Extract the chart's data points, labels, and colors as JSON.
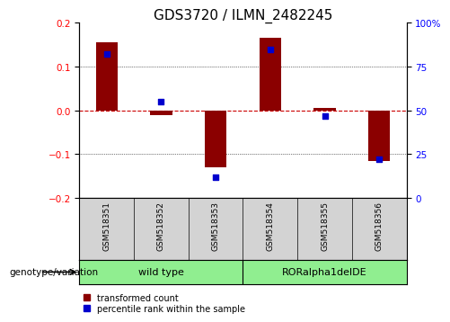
{
  "title": "GDS3720 / ILMN_2482245",
  "samples": [
    "GSM518351",
    "GSM518352",
    "GSM518353",
    "GSM518354",
    "GSM518355",
    "GSM518356"
  ],
  "red_values": [
    0.155,
    -0.01,
    -0.13,
    0.165,
    0.005,
    -0.115
  ],
  "blue_values_pct": [
    82,
    55,
    12,
    85,
    47,
    22
  ],
  "ylim_left": [
    -0.2,
    0.2
  ],
  "ylim_right": [
    0,
    100
  ],
  "yticks_left": [
    -0.2,
    -0.1,
    0.0,
    0.1,
    0.2
  ],
  "yticks_right": [
    0,
    25,
    50,
    75,
    100
  ],
  "group_bg_color": "#90EE90",
  "sample_bg_color": "#d3d3d3",
  "bar_color": "#8B0000",
  "dot_color": "#0000CD",
  "zero_line_color": "#CC0000",
  "title_fontsize": 11,
  "tick_fontsize": 7.5,
  "sample_fontsize": 6.5,
  "group_fontsize": 8,
  "legend_fontsize": 7,
  "geno_fontsize": 7.5
}
